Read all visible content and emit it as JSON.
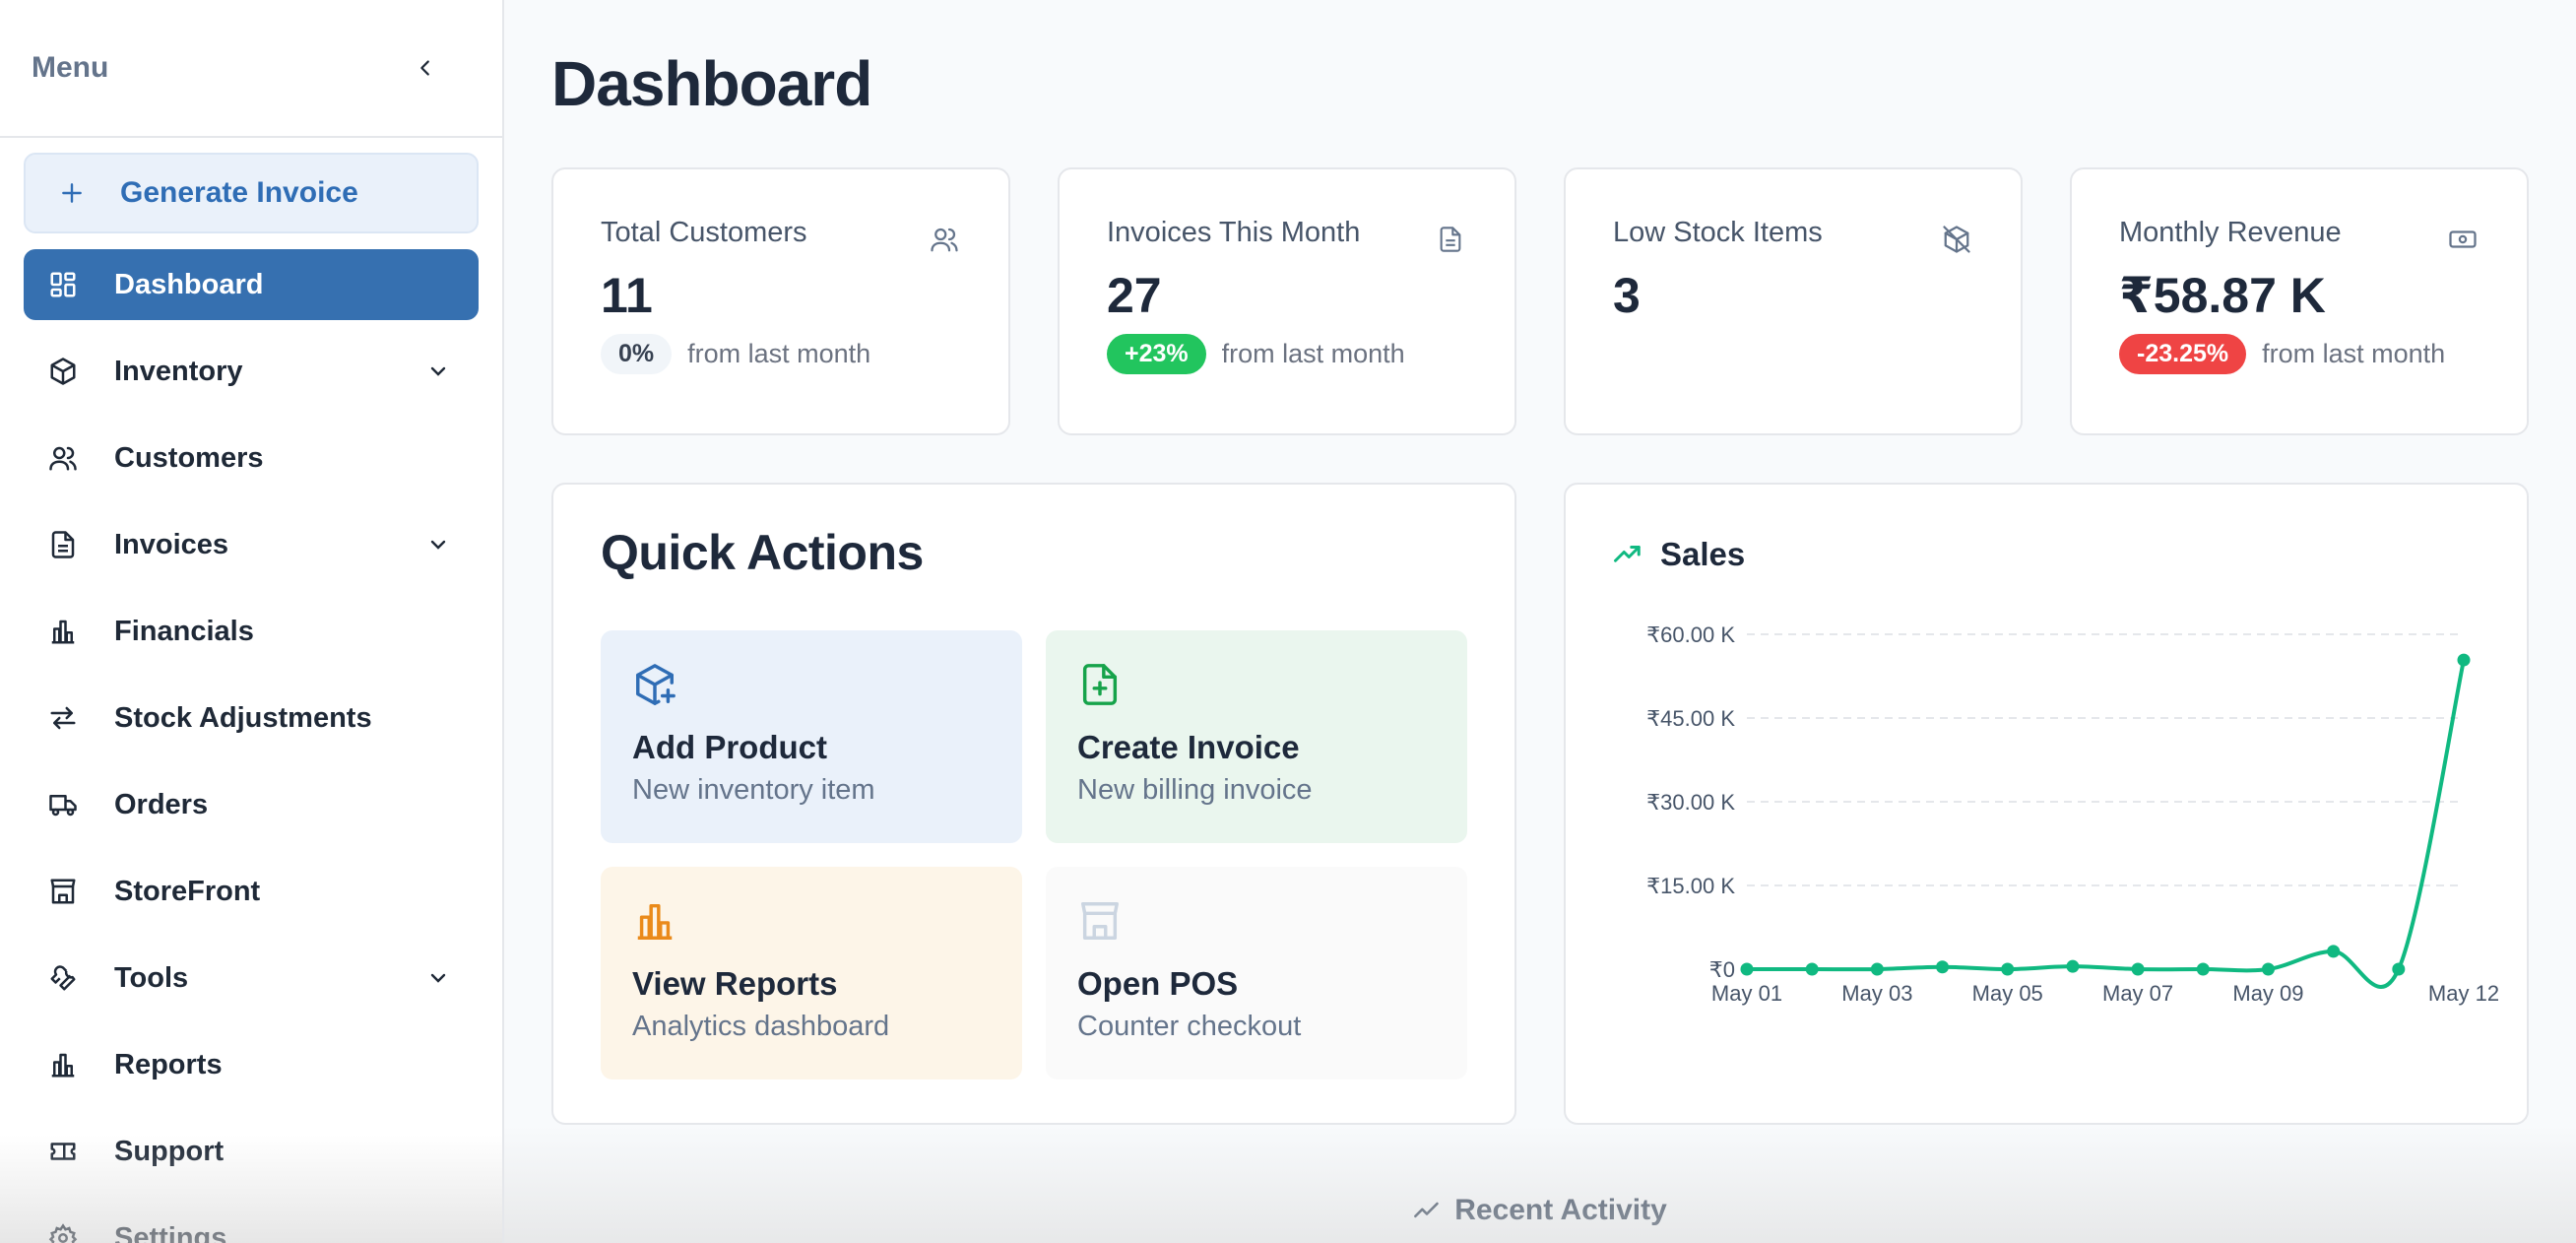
{
  "sidebar": {
    "title": "Menu",
    "generate_invoice": "Generate Invoice",
    "items": [
      {
        "label": "Dashboard",
        "icon": "dashboard-icon"
      },
      {
        "label": "Inventory",
        "icon": "box-icon"
      },
      {
        "label": "Customers",
        "icon": "users-icon"
      },
      {
        "label": "Invoices",
        "icon": "file-icon"
      },
      {
        "label": "Financials",
        "icon": "bar-chart-icon"
      },
      {
        "label": "Stock Adjustments",
        "icon": "arrows-icon"
      },
      {
        "label": "Orders",
        "icon": "truck-icon"
      },
      {
        "label": "StoreFront",
        "icon": "store-icon"
      },
      {
        "label": "Tools",
        "icon": "wrench-icon"
      },
      {
        "label": "Reports",
        "icon": "bar-chart-icon"
      },
      {
        "label": "Support",
        "icon": "ticket-icon"
      },
      {
        "label": "Settings",
        "icon": "gear-icon"
      }
    ]
  },
  "page": {
    "title": "Dashboard"
  },
  "stats": [
    {
      "label": "Total Customers",
      "value": "11",
      "badge": "0%",
      "foot": "from last month",
      "icon": "users-icon"
    },
    {
      "label": "Invoices This Month",
      "value": "27",
      "badge": "+23%",
      "foot": "from last month",
      "icon": "file-icon"
    },
    {
      "label": "Low Stock Items",
      "value": "3",
      "icon": "package-off-icon"
    },
    {
      "label": "Monthly Revenue",
      "value": "₹58.87 K",
      "badge": "-23.25%",
      "foot": "from last month",
      "icon": "banknote-icon"
    }
  ],
  "quick_actions": {
    "title": "Quick Actions",
    "tiles": [
      {
        "title": "Add Product",
        "subtitle": "New inventory item",
        "icon": "package-plus-icon"
      },
      {
        "title": "Create Invoice",
        "subtitle": "New billing invoice",
        "icon": "file-plus-icon"
      },
      {
        "title": "View Reports",
        "subtitle": "Analytics dashboard",
        "icon": "bar-chart-icon"
      },
      {
        "title": "Open POS",
        "subtitle": "Counter checkout",
        "icon": "store-icon"
      }
    ]
  },
  "chart_data": {
    "type": "line",
    "title": "Sales",
    "x": [
      "May 01",
      "May 02",
      "May 03",
      "May 04",
      "May 05",
      "May 06",
      "May 07",
      "May 08",
      "May 09",
      "May 10",
      "May 11",
      "May 12"
    ],
    "x_tick_labels": [
      "May 01",
      "May 03",
      "May 05",
      "May 07",
      "May 09",
      "May 12"
    ],
    "series": [
      {
        "values": [
          0,
          0,
          0,
          0.4,
          0,
          0.5,
          0,
          0,
          0,
          3.2,
          0,
          55.4
        ]
      }
    ],
    "y_tick_labels": [
      "₹0",
      "₹15.00 K",
      "₹30.00 K",
      "₹45.00 K",
      "₹60.00 K"
    ],
    "y_ticks": [
      0,
      15,
      30,
      45,
      60
    ],
    "ylim": [
      0,
      60
    ],
    "unit": "thousands of rupees",
    "grid": true,
    "color": "#10b981"
  },
  "recent": {
    "label": "Recent Activity"
  },
  "colors": {
    "accent": "#3670b0",
    "success": "#22c55e",
    "danger": "#ef4444",
    "chart": "#10b981"
  }
}
